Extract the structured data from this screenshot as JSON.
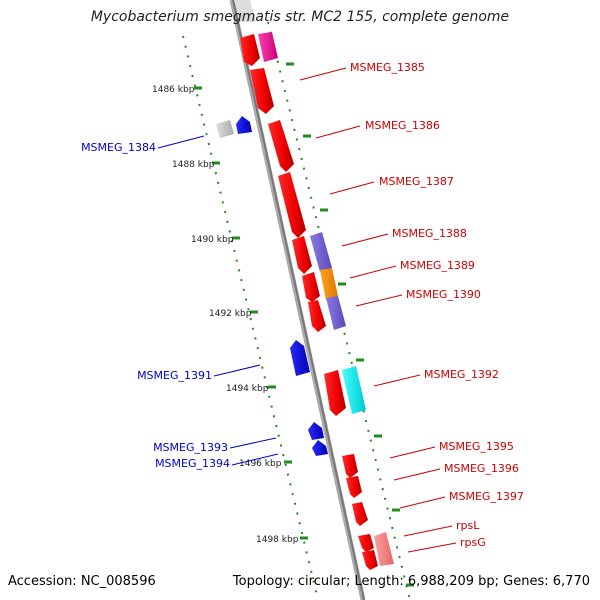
{
  "title": "Mycobacterium smegmatis str. MC2 155, complete genome",
  "footer": {
    "accession": "Accession: NC_008596",
    "summary": "Topology: circular; Length: 6,988,209 bp; Genes: 6,770"
  },
  "colors": {
    "backbone": "#888888",
    "tick": "#228B22",
    "tick_label": "#222222",
    "forward_gene": "#ff0000",
    "reverse_gene": "#0000ff",
    "forward_label": "#cc0000",
    "reverse_label": "#0000cc"
  },
  "ticks": [
    {
      "label": "1486 kbp"
    },
    {
      "label": "1488 kbp"
    },
    {
      "label": "1490 kbp"
    },
    {
      "label": "1492 kbp"
    },
    {
      "label": "1494 kbp"
    },
    {
      "label": "1496 kbp"
    },
    {
      "label": "1498 kbp"
    }
  ],
  "labels_right": [
    {
      "text": "MSMEG_1385"
    },
    {
      "text": "MSMEG_1386"
    },
    {
      "text": "MSMEG_1387"
    },
    {
      "text": "MSMEG_1388"
    },
    {
      "text": "MSMEG_1389"
    },
    {
      "text": "MSMEG_1390"
    },
    {
      "text": "MSMEG_1392"
    },
    {
      "text": "MSMEG_1395"
    },
    {
      "text": "MSMEG_1396"
    },
    {
      "text": "MSMEG_1397"
    },
    {
      "text": "rpsL"
    },
    {
      "text": "rpsG"
    }
  ],
  "labels_left": [
    {
      "text": "MSMEG_1384"
    },
    {
      "text": "MSMEG_1391"
    },
    {
      "text": "MSMEG_1393"
    },
    {
      "text": "MSMEG_1394"
    }
  ]
}
